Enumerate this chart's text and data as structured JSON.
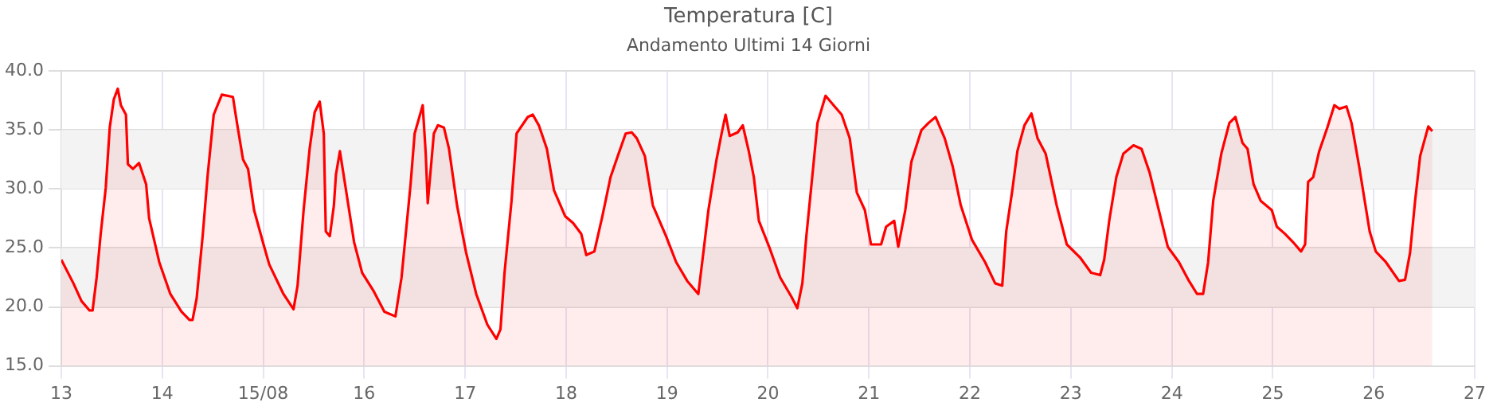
{
  "chart_data": {
    "type": "area",
    "title": "Temperatura [C]",
    "subtitle": "Andamento Ultimi 14 Giorni",
    "xlim": [
      "--08-13",
      "--08-27"
    ],
    "xticks": [
      {
        "value": "--08-13",
        "label": "13"
      },
      {
        "value": "--08-14",
        "label": "14"
      },
      {
        "value": "--08-15",
        "label": "15/08"
      },
      {
        "value": "--08-16",
        "label": "16"
      },
      {
        "value": "--08-17",
        "label": "17"
      },
      {
        "value": "--08-18",
        "label": "18"
      },
      {
        "value": "--08-19",
        "label": "19"
      },
      {
        "value": "--08-20",
        "label": "20"
      },
      {
        "value": "--08-21",
        "label": "21"
      },
      {
        "value": "--08-22",
        "label": "22"
      },
      {
        "value": "--08-23",
        "label": "23"
      },
      {
        "value": "--08-24",
        "label": "24"
      },
      {
        "value": "--08-25",
        "label": "25"
      },
      {
        "value": "--08-26",
        "label": "26"
      },
      {
        "value": "--08-27",
        "label": "27"
      }
    ],
    "ylim": [
      15,
      40
    ],
    "yticks": [
      {
        "value": 15,
        "label": "15.0"
      },
      {
        "value": 20,
        "label": "20.0"
      },
      {
        "value": 25,
        "label": "25.0"
      },
      {
        "value": 30,
        "label": "30.0"
      },
      {
        "value": 35,
        "label": "35.0"
      },
      {
        "value": 40,
        "label": "40.0"
      }
    ],
    "bands": [
      {
        "axis": "y",
        "from": 20,
        "to": 25,
        "color": "#f3f3f3"
      },
      {
        "axis": "y",
        "from": 30,
        "to": 35,
        "color": "#f3f3f3"
      }
    ],
    "grid": true,
    "legend": false,
    "marker": "none",
    "line_style": "solid",
    "series": [
      {
        "color": "#ff0000",
        "x": [
          "--08-13T00:00",
          "--08-13T02:53",
          "--08-13T04:48",
          "--08-13T06:43",
          "--08-13T07:26",
          "--08-13T08:24",
          "--08-13T09:22",
          "--08-13T10:34",
          "--08-13T11:31",
          "--08-13T12:29",
          "--08-13T13:26",
          "--08-13T14:10",
          "--08-13T15:22",
          "--08-13T15:50",
          "--08-13T17:02",
          "--08-13T18:29",
          "--08-13T20:10",
          "--08-13T20:53",
          "--08-13T23:17",
          "--08-14T01:55",
          "--08-14T04:34",
          "--08-14T06:29",
          "--08-14T07:12",
          "--08-14T08:10",
          "--08-14T09:36",
          "--08-14T10:48",
          "--08-14T12:14",
          "--08-14T14:10",
          "--08-14T16:48",
          "--08-14T17:46",
          "--08-14T19:12",
          "--08-14T20:24",
          "--08-14T21:50",
          "--08-15T00:14",
          "--08-15T01:26",
          "--08-15T04:48",
          "--08-15T07:12",
          "--08-15T08:10",
          "--08-15T09:36",
          "--08-15T11:02",
          "--08-15T12:14",
          "--08-15T13:26",
          "--08-15T14:24",
          "--08-15T14:53",
          "--08-15T15:50",
          "--08-15T16:48",
          "--08-15T17:17",
          "--08-15T18:14",
          "--08-15T19:41",
          "--08-15T21:36",
          "--08-15T23:31",
          "--08-16T02:10",
          "--08-16T04:48",
          "--08-16T07:26",
          "--08-16T08:53",
          "--08-16T09:50",
          "--08-16T11:02",
          "--08-16T12:00",
          "--08-16T13:55",
          "--08-16T14:38",
          "--08-16T15:07",
          "--08-16T15:50",
          "--08-16T16:34",
          "--08-16T17:31",
          "--08-16T18:58",
          "--08-16T20:10",
          "--08-16T22:05",
          "--08-17T00:14",
          "--08-17T02:38",
          "--08-17T05:17",
          "--08-17T07:26",
          "--08-17T08:24",
          "--08-17T09:22",
          "--08-17T11:02",
          "--08-17T12:14",
          "--08-17T14:53",
          "--08-17T16:05",
          "--08-17T17:31",
          "--08-17T19:26",
          "--08-17T21:07",
          "--08-17T23:46",
          "--08-18T01:41",
          "--08-18T03:36",
          "--08-18T04:48",
          "--08-18T06:43",
          "--08-18T08:38",
          "--08-18T10:34",
          "--08-18T12:29",
          "--08-18T14:10",
          "--08-18T15:36",
          "--08-18T16:48",
          "--08-18T18:43",
          "--08-18T20:38",
          "--08-18T23:46",
          "--08-19T02:10",
          "--08-19T04:48",
          "--08-19T07:26",
          "--08-19T08:38",
          "--08-19T09:50",
          "--08-19T11:46",
          "--08-19T12:58",
          "--08-19T13:55",
          "--08-19T14:53",
          "--08-19T16:48",
          "--08-19T18:00",
          "--08-19T19:26",
          "--08-19T20:38",
          "--08-19T21:50",
          "--08-20T00:29",
          "--08-20T02:53",
          "--08-20T05:31",
          "--08-20T06:58",
          "--08-20T08:10",
          "--08-20T09:07",
          "--08-20T10:34",
          "--08-20T11:46",
          "--08-20T13:41",
          "--08-20T15:36",
          "--08-20T17:31",
          "--08-20T19:26",
          "--08-20T21:07",
          "--08-20T23:02",
          "--08-21T00:29",
          "--08-21T02:53",
          "--08-21T04:05",
          "--08-21T06:00",
          "--08-21T06:58",
          "--08-21T08:38",
          "--08-21T10:05",
          "--08-21T12:29",
          "--08-21T14:10",
          "--08-21T15:50",
          "--08-21T18:00",
          "--08-21T19:55",
          "--08-21T21:50",
          "--08-22T00:29",
          "--08-22T03:36",
          "--08-22T06:00",
          "--08-22T07:41",
          "--08-22T08:38",
          "--08-22T10:05",
          "--08-22T11:17",
          "--08-22T12:58",
          "--08-22T14:38",
          "--08-22T16:05",
          "--08-22T18:00",
          "--08-22T20:38",
          "--08-22T23:02",
          "--08-23T02:10",
          "--08-23T04:48",
          "--08-23T06:58",
          "--08-23T07:55",
          "--08-23T09:07",
          "--08-23T10:48",
          "--08-23T12:29",
          "--08-23T14:53",
          "--08-23T16:48",
          "--08-23T18:43",
          "--08-23T20:38",
          "--08-23T23:02",
          "--08-24T01:41",
          "--08-24T04:05",
          "--08-24T06:00",
          "--08-24T07:26",
          "--08-24T08:38",
          "--08-24T09:50",
          "--08-24T11:46",
          "--08-24T13:41",
          "--08-24T15:07",
          "--08-24T16:48",
          "--08-24T18:00",
          "--08-24T19:26",
          "--08-24T21:07",
          "--08-24T23:46",
          "--08-25T00:58",
          "--08-25T02:53",
          "--08-25T04:48",
          "--08-25T06:43",
          "--08-25T07:41",
          "--08-25T08:24",
          "--08-25T09:36",
          "--08-25T11:02",
          "--08-25T12:58",
          "--08-25T14:38",
          "--08-25T15:50",
          "--08-25T17:31",
          "--08-25T18:43",
          "--08-25T20:38",
          "--08-25T23:02",
          "--08-26T00:29",
          "--08-26T02:53",
          "--08-26T06:00",
          "--08-26T07:26",
          "--08-26T08:38",
          "--08-26T09:50",
          "--08-26T11:02",
          "--08-26T12:58",
          "--08-26T13:55"
        ],
        "values": [
          24.0,
          22.0,
          20.5,
          19.7,
          19.7,
          22.5,
          26.2,
          30.1,
          35.2,
          37.6,
          38.5,
          37.1,
          36.3,
          32.1,
          31.7,
          32.2,
          30.4,
          27.5,
          23.8,
          21.1,
          19.6,
          18.9,
          18.9,
          20.7,
          26.0,
          31.2,
          36.3,
          38.0,
          37.8,
          35.6,
          32.5,
          31.7,
          28.2,
          25.1,
          23.6,
          21.1,
          19.8,
          21.8,
          28.2,
          33.4,
          36.5,
          37.4,
          34.7,
          26.4,
          26.0,
          28.6,
          31.2,
          33.2,
          29.9,
          25.5,
          22.9,
          21.4,
          19.6,
          19.2,
          22.5,
          26.0,
          30.4,
          34.7,
          37.1,
          33.0,
          28.8,
          31.7,
          34.7,
          35.4,
          35.2,
          33.4,
          28.6,
          24.6,
          21.1,
          18.5,
          17.3,
          18.1,
          22.9,
          29.0,
          34.7,
          36.1,
          36.3,
          35.4,
          33.4,
          29.9,
          27.7,
          27.1,
          26.2,
          24.4,
          24.7,
          27.7,
          31.0,
          33.0,
          34.7,
          34.8,
          34.3,
          32.8,
          28.6,
          26.0,
          23.8,
          22.2,
          21.1,
          24.6,
          28.2,
          32.5,
          34.7,
          36.3,
          34.5,
          34.8,
          35.4,
          33.2,
          31.0,
          27.3,
          24.9,
          22.5,
          20.9,
          19.9,
          22.0,
          26.0,
          31.2,
          35.6,
          37.9,
          37.1,
          36.3,
          34.3,
          29.7,
          28.2,
          25.3,
          25.3,
          26.8,
          27.3,
          25.1,
          28.2,
          32.3,
          35.0,
          35.6,
          36.1,
          34.3,
          31.9,
          28.6,
          25.7,
          23.8,
          22.0,
          21.8,
          26.4,
          29.9,
          33.2,
          35.4,
          36.4,
          34.3,
          33.0,
          28.6,
          25.3,
          24.2,
          22.9,
          22.7,
          24.0,
          27.3,
          31.0,
          33.0,
          33.7,
          33.4,
          31.4,
          28.6,
          25.1,
          23.8,
          22.2,
          21.1,
          21.1,
          23.8,
          29.0,
          33.0,
          35.6,
          36.1,
          33.9,
          33.4,
          30.4,
          29.0,
          28.2,
          26.8,
          26.2,
          25.5,
          24.7,
          25.3,
          30.6,
          31.0,
          33.2,
          35.2,
          37.1,
          36.8,
          37.0,
          35.6,
          31.7,
          26.4,
          24.7,
          23.8,
          22.2,
          22.3,
          24.6,
          29.0,
          32.8,
          35.3,
          34.9
        ]
      }
    ]
  }
}
